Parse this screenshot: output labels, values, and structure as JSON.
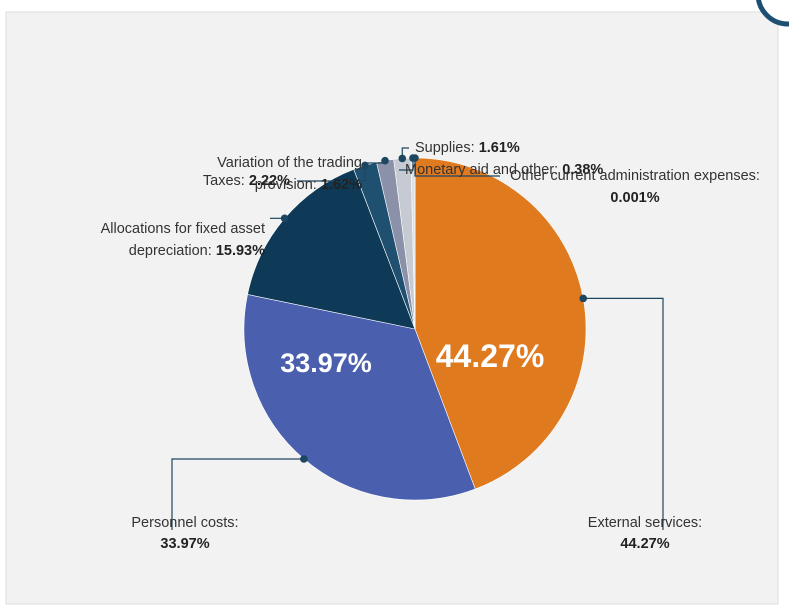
{
  "chart_data": {
    "type": "pie",
    "categories": [
      "External services:",
      "Personnel costs:",
      "Allocations for fixed asset depreciation:",
      "Taxes:",
      "Variation of the trading provision:",
      "Supplies:",
      "Monetary aid and other:",
      "Other current administration expenses:"
    ],
    "values": [
      44.27,
      33.97,
      15.93,
      2.22,
      1.62,
      1.61,
      0.38,
      0.001
    ],
    "value_labels": [
      "44.27%",
      "33.97%",
      "15.93%",
      "2.22%",
      "1.62%",
      "1.61%",
      "0.38%",
      "0.001%"
    ],
    "colors": [
      "#e07a1f",
      "#4a5fad",
      "#0e3a57",
      "#1f5070",
      "#8a91a8",
      "#c5cad3",
      "#dcdfe3",
      "#a9a9a9"
    ]
  }
}
